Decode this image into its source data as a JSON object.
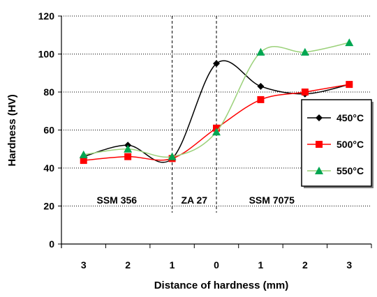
{
  "chart_data": {
    "type": "line",
    "xlabel": "Distance of hardness (mm)",
    "ylabel": "Hardness (HV)",
    "ylim": [
      0,
      120
    ],
    "yticks": [
      0,
      20,
      40,
      60,
      80,
      100,
      120
    ],
    "categories": [
      "3",
      "2",
      "1",
      "0",
      "1",
      "2",
      "3"
    ],
    "grid": "horizontal dashed",
    "legend_position": "right",
    "regions": [
      {
        "label": "SSM 356",
        "from": 0,
        "to": 2.5
      },
      {
        "label": "ZA 27",
        "from": 2.5,
        "to": 3.5
      },
      {
        "label": "SSM 7075",
        "from": 3.5,
        "to": 6
      }
    ],
    "series": [
      {
        "name": "450°C",
        "color": "#000000",
        "line_color": "#000000",
        "marker": "diamond",
        "values": [
          46,
          52,
          45,
          95,
          83,
          79,
          84
        ]
      },
      {
        "name": "500°C",
        "color": "#ff0000",
        "line_color": "#ff0000",
        "marker": "square",
        "values": [
          44,
          46,
          45,
          61,
          76,
          80,
          84
        ]
      },
      {
        "name": "550°C",
        "color": "#00a651",
        "line_color": "#9bd17a",
        "marker": "triangle",
        "values": [
          47,
          50,
          46,
          59,
          101,
          101,
          106
        ]
      }
    ]
  }
}
